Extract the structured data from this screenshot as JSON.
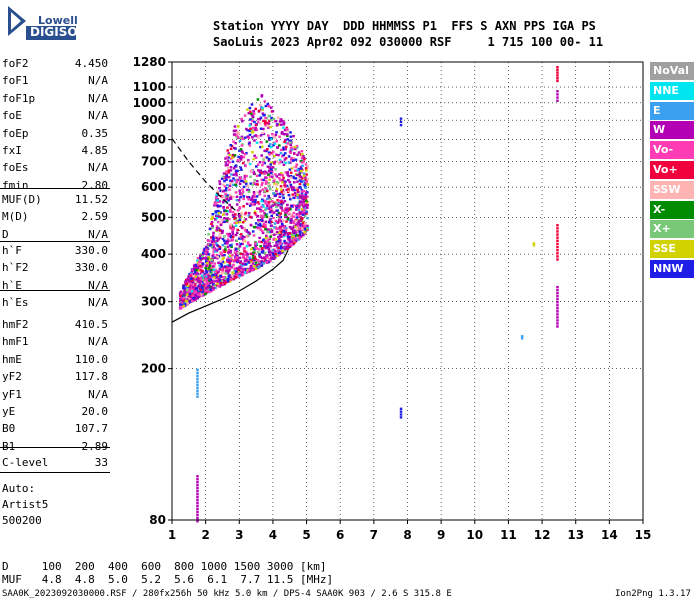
{
  "logo": {
    "line1": "Lowell",
    "line2": "DIGISONDE"
  },
  "header": {
    "line1": "Station YYYY DAY  DDD HHMMSS P1  FFS S AXN PPS IGA PS",
    "line2": "SaoLuis 2023 Apr02 092 030000 RSF     1 715 100 00- 11"
  },
  "params": {
    "group1": [
      {
        "name": "foF2",
        "value": "4.450"
      },
      {
        "name": "foF1",
        "value": "N/A"
      },
      {
        "name": "foF1p",
        "value": "N/A"
      },
      {
        "name": "foE",
        "value": "N/A"
      },
      {
        "name": "foEp",
        "value": "0.35"
      },
      {
        "name": "fxI",
        "value": "4.85"
      },
      {
        "name": "foEs",
        "value": "N/A"
      },
      {
        "name": "fmin",
        "value": "2.80"
      }
    ],
    "group2": [
      {
        "name": "MUF(D)",
        "value": "11.52"
      },
      {
        "name": "M(D)",
        "value": "2.59"
      },
      {
        "name": "D",
        "value": "N/A"
      }
    ],
    "group3": [
      {
        "name": "h`F",
        "value": "330.0"
      },
      {
        "name": "h`F2",
        "value": "330.0"
      },
      {
        "name": "h`E",
        "value": "N/A"
      },
      {
        "name": "h`Es",
        "value": "N/A"
      }
    ],
    "group4": [
      {
        "name": "hmF2",
        "value": "410.5"
      },
      {
        "name": "hmF1",
        "value": "N/A"
      },
      {
        "name": "hmE",
        "value": "110.0"
      },
      {
        "name": "yF2",
        "value": "117.8"
      },
      {
        "name": "yF1",
        "value": "N/A"
      },
      {
        "name": "yE",
        "value": "20.0"
      },
      {
        "name": "B0",
        "value": "107.7"
      },
      {
        "name": "B1",
        "value": "2.89"
      }
    ],
    "group5": [
      {
        "name": "C-level",
        "value": "33"
      }
    ]
  },
  "autoscale": {
    "line1": "Auto:",
    "line2": "Artist5",
    "line3": "500200"
  },
  "legend": [
    {
      "label": "NoVal",
      "color": "#a0a0a0"
    },
    {
      "label": "NNE",
      "color": "#00e6f0"
    },
    {
      "label": "E",
      "color": "#3ca0f0"
    },
    {
      "label": "W",
      "color": "#b400b4"
    },
    {
      "label": "Vo-",
      "color": "#ff3cb4"
    },
    {
      "label": "Vo+",
      "color": "#f0003c"
    },
    {
      "label": "SSW",
      "color": "#ffb4b4"
    },
    {
      "label": "X-",
      "color": "#008c00"
    },
    {
      "label": "X+",
      "color": "#78c878"
    },
    {
      "label": "SSE",
      "color": "#d2d200"
    },
    {
      "label": "NNW",
      "color": "#1e1ee6"
    }
  ],
  "bottom": {
    "d_row": "D     100  200  400  600  800 1000 1500 3000 [km]",
    "muf_row": "MUF   4.8  4.8  5.0  5.2  5.6  6.1  7.7 11.5 [MHz]"
  },
  "footer": {
    "left": "SAA0K_2023092030000.RSF / 280fx256h 50 kHz 5.0 km / DPS-4 SAA0K 903 / 2.6 S 315.8 E",
    "right": "Ion2Png 1.3.17"
  },
  "chart_data": {
    "type": "scatter",
    "title": "",
    "xlabel": "",
    "ylabel": "",
    "xlim": [
      1,
      15
    ],
    "ylim": [
      80,
      1280
    ],
    "x_ticks": [
      1,
      2,
      3,
      4,
      5,
      6,
      7,
      8,
      9,
      10,
      11,
      12,
      13,
      14,
      15
    ],
    "y_ticks": [
      80,
      200,
      300,
      400,
      500,
      600,
      700,
      800,
      900,
      1000,
      1100,
      1280
    ],
    "y_scale": "log",
    "gridlines": "dotted",
    "o_trace_profile": {
      "x": [
        1.0,
        1.5,
        2.0,
        2.5,
        3.0,
        3.5,
        4.0,
        4.3,
        4.45
      ],
      "y": [
        265,
        280,
        292,
        305,
        320,
        340,
        365,
        385,
        410
      ]
    },
    "dashed_profile": {
      "x": [
        1.0,
        1.5,
        2.0,
        2.5,
        3.0
      ],
      "y": [
        805,
        700,
        620,
        560,
        510
      ]
    },
    "scatter_regions": [
      {
        "name": "F-trace",
        "x_range": [
          1.2,
          5.0
        ],
        "y_range": [
          290,
          1120
        ],
        "colors": [
          "#b400b4",
          "#ff3cb4",
          "#1e1ee6",
          "#f0003c",
          "#ffb4b4",
          "#d2d200",
          "#78c878",
          "#008c00",
          "#3ca0f0",
          "#00e6f0"
        ]
      }
    ],
    "isolated_traces": [
      {
        "x": 1.75,
        "y": [
          80,
          105
        ],
        "color": "#b400b4"
      },
      {
        "x": 1.75,
        "y": [
          170,
          200
        ],
        "color": "#3ca0f0"
      },
      {
        "x": 7.8,
        "y": [
          880,
          915
        ],
        "color": "#1e1ee6"
      },
      {
        "x": 7.8,
        "y": [
          150,
          158
        ],
        "color": "#1e1ee6"
      },
      {
        "x": 12.45,
        "y": [
          1150,
          1250
        ],
        "color": "#f0003c"
      },
      {
        "x": 12.45,
        "y": [
          1020,
          1080
        ],
        "color": "#b400b4"
      },
      {
        "x": 12.45,
        "y": [
          390,
          480
        ],
        "color": "#f0003c"
      },
      {
        "x": 12.45,
        "y": [
          260,
          330
        ],
        "color": "#b400b4"
      },
      {
        "x": 11.4,
        "y": [
          242,
          245
        ],
        "color": "#3ca0f0"
      },
      {
        "x": 11.75,
        "y": [
          425,
          430
        ],
        "color": "#d2d200"
      }
    ]
  }
}
